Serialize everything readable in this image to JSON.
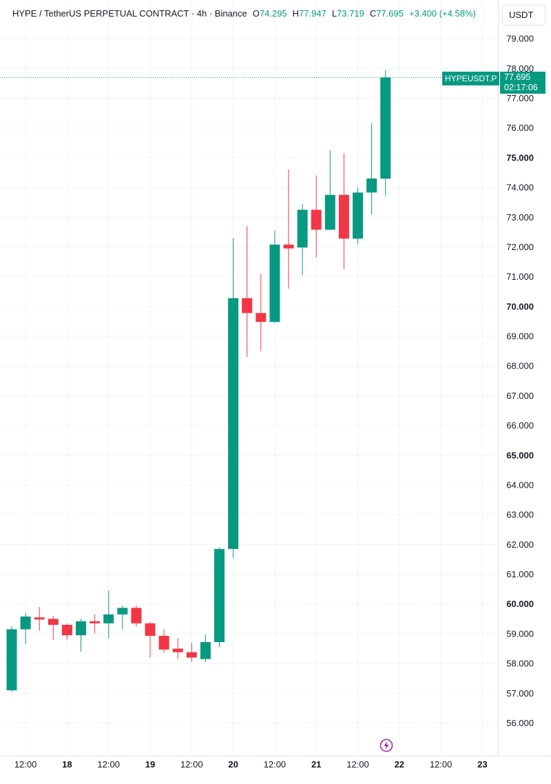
{
  "header": {
    "symbol": "HYPE / TetherUS PERPETUAL CONTRACT · 4h · Binance",
    "o_label": "O",
    "o_value": "74.295",
    "h_label": "H",
    "h_value": "77.947",
    "l_label": "L",
    "l_value": "73.719",
    "c_label": "C",
    "c_value": "77.695",
    "change": "+3.400 (+4.58%)"
  },
  "currency_button": "USDT",
  "last_price_badge": {
    "symbol": "HYPEUSDT.P",
    "price": "77.695",
    "countdown": "02:17:06"
  },
  "colors": {
    "up": "#089981",
    "down": "#f23645",
    "grid": "#f0f3fa",
    "text": "#131722"
  },
  "icons": {
    "lightning": "lightning-bolt-icon"
  },
  "chart_data": {
    "type": "candlestick",
    "interval": "4h",
    "ylim": [
      54.9,
      80.3
    ],
    "y_ticks": [
      "56.000",
      "57.000",
      "58.000",
      "59.000",
      "60.000",
      "61.000",
      "62.000",
      "63.000",
      "64.000",
      "65.000",
      "66.000",
      "67.000",
      "68.000",
      "69.000",
      "70.000",
      "71.000",
      "72.000",
      "73.000",
      "74.000",
      "75.000",
      "76.000",
      "77.000",
      "78.000",
      "79.000"
    ],
    "y_ticks_bold": [
      "60.000",
      "65.000",
      "70.000",
      "75.000"
    ],
    "x_ticks": [
      {
        "label": "12:00",
        "bar": 1,
        "bold": false
      },
      {
        "label": "18",
        "bar": 4,
        "bold": true
      },
      {
        "label": "12:00",
        "bar": 7,
        "bold": false
      },
      {
        "label": "19",
        "bar": 10,
        "bold": true
      },
      {
        "label": "12:00",
        "bar": 13,
        "bold": false
      },
      {
        "label": "20",
        "bar": 16,
        "bold": true
      },
      {
        "label": "12:00",
        "bar": 19,
        "bold": false
      },
      {
        "label": "21",
        "bar": 22,
        "bold": true
      },
      {
        "label": "12:00",
        "bar": 25,
        "bold": false
      },
      {
        "label": "22",
        "bar": 28,
        "bold": true
      },
      {
        "label": "12:00",
        "bar": 31,
        "bold": false
      },
      {
        "label": "23",
        "bar": 34,
        "bold": true
      }
    ],
    "candles": [
      {
        "o": 57.1,
        "h": 59.25,
        "l": 57.05,
        "c": 59.15
      },
      {
        "o": 59.15,
        "h": 59.7,
        "l": 58.65,
        "c": 59.58
      },
      {
        "o": 59.55,
        "h": 59.9,
        "l": 59.1,
        "c": 59.48
      },
      {
        "o": 59.5,
        "h": 59.6,
        "l": 58.8,
        "c": 59.3
      },
      {
        "o": 59.3,
        "h": 59.35,
        "l": 58.8,
        "c": 58.95
      },
      {
        "o": 58.95,
        "h": 59.5,
        "l": 58.4,
        "c": 59.42
      },
      {
        "o": 59.42,
        "h": 59.65,
        "l": 59.0,
        "c": 59.35
      },
      {
        "o": 59.35,
        "h": 60.45,
        "l": 58.85,
        "c": 59.65
      },
      {
        "o": 59.65,
        "h": 59.95,
        "l": 59.15,
        "c": 59.87
      },
      {
        "o": 59.87,
        "h": 59.95,
        "l": 59.25,
        "c": 59.35
      },
      {
        "o": 59.35,
        "h": 59.4,
        "l": 58.2,
        "c": 58.93
      },
      {
        "o": 58.93,
        "h": 59.15,
        "l": 58.35,
        "c": 58.47
      },
      {
        "o": 58.5,
        "h": 58.85,
        "l": 58.15,
        "c": 58.38
      },
      {
        "o": 58.38,
        "h": 58.7,
        "l": 58.05,
        "c": 58.2
      },
      {
        "o": 58.15,
        "h": 58.98,
        "l": 58.05,
        "c": 58.72
      },
      {
        "o": 58.72,
        "h": 61.9,
        "l": 58.55,
        "c": 61.85
      },
      {
        "o": 61.85,
        "h": 72.3,
        "l": 61.55,
        "c": 70.28
      },
      {
        "o": 70.28,
        "h": 72.7,
        "l": 68.3,
        "c": 69.78
      },
      {
        "o": 69.78,
        "h": 71.1,
        "l": 68.5,
        "c": 69.48
      },
      {
        "o": 69.48,
        "h": 72.55,
        "l": 69.45,
        "c": 72.08
      },
      {
        "o": 72.08,
        "h": 74.6,
        "l": 70.6,
        "c": 71.95
      },
      {
        "o": 71.98,
        "h": 73.45,
        "l": 71.05,
        "c": 73.25
      },
      {
        "o": 73.25,
        "h": 74.4,
        "l": 71.65,
        "c": 72.58
      },
      {
        "o": 72.58,
        "h": 75.25,
        "l": 72.55,
        "c": 73.75
      },
      {
        "o": 73.75,
        "h": 75.15,
        "l": 71.25,
        "c": 72.28
      },
      {
        "o": 72.28,
        "h": 74.0,
        "l": 72.1,
        "c": 73.83
      },
      {
        "o": 73.83,
        "h": 76.15,
        "l": 73.1,
        "c": 74.3
      },
      {
        "o": 74.295,
        "h": 77.947,
        "l": 73.719,
        "c": 77.695
      }
    ],
    "last_price": 77.695
  }
}
